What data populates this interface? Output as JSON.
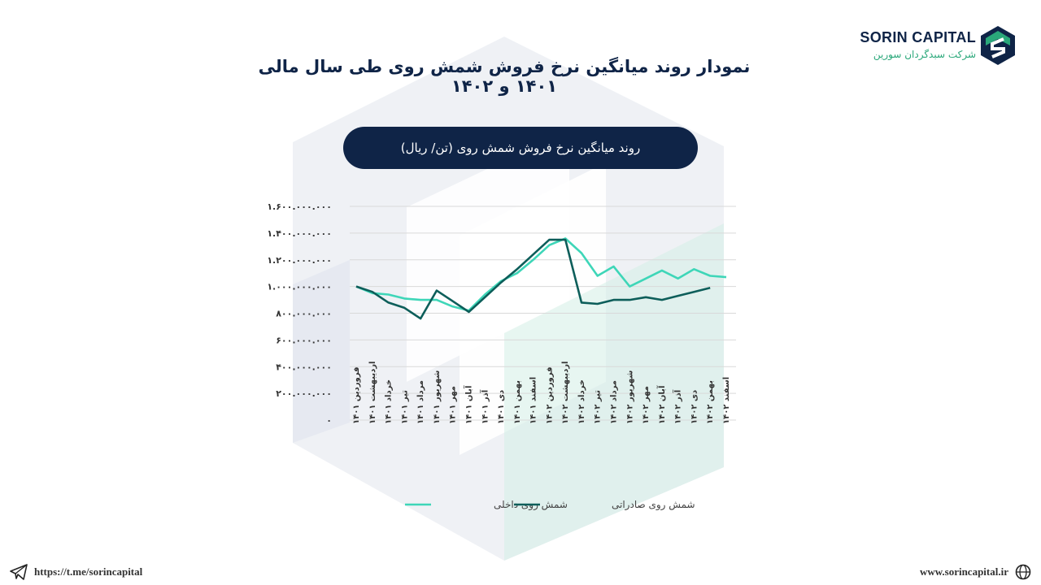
{
  "brand": {
    "name": "SORIN CAPITAL",
    "subtitle": "شرکت سبدگردان سورین",
    "color_primary": "#0f2447",
    "color_accent": "#2aa87a"
  },
  "page": {
    "title": "نمودار روند میانگین نرخ فروش شمش روی طی سال مالی ۱۴۰۱ و ۱۴۰۲"
  },
  "footer": {
    "telegram_icon": "telegram-icon",
    "telegram": "https://t.me/sorincapital",
    "web_icon": "globe-icon",
    "website": "www.sorincapital.ir"
  },
  "chart_data": {
    "type": "line",
    "title": "روند میانگین نرخ فروش شمش روی (تن/ ریال)",
    "ylim": [
      0,
      1600000000
    ],
    "yticks": [
      0,
      200000000,
      400000000,
      600000000,
      800000000,
      1000000000,
      1200000000,
      1400000000,
      1600000000
    ],
    "ytick_labels": [
      "۰",
      "۲۰۰.۰۰۰.۰۰۰",
      "۴۰۰.۰۰۰.۰۰۰",
      "۶۰۰.۰۰۰.۰۰۰",
      "۸۰۰.۰۰۰.۰۰۰",
      "۱.۰۰۰.۰۰۰.۰۰۰",
      "۱.۲۰۰.۰۰۰.۰۰۰",
      "۱.۴۰۰.۰۰۰.۰۰۰",
      "۱.۶۰۰.۰۰۰.۰۰۰"
    ],
    "categories": [
      "فروردین ۱۴۰۱",
      "اردیبهشت ۱۴۰۱",
      "خرداد ۱۴۰۱",
      "تیر ۱۴۰۱",
      "مرداد ۱۴۰۱",
      "شهریور ۱۴۰۱",
      "مهر ۱۴۰۱",
      "آبان ۱۴۰۱",
      "آذر ۱۴۰۱",
      "دی ۱۴۰۱",
      "بهمن ۱۴۰۱",
      "اسفند ۱۴۰۱",
      "فروردین ۱۴۰۲",
      "اردیبهشت ۱۴۰۲",
      "خرداد ۱۴۰۲",
      "تیر ۱۴۰۲",
      "مرداد ۱۴۰۲",
      "شهریور ۱۴۰۲",
      "مهر ۱۴۰۲",
      "آبان ۱۴۰۲",
      "آذر ۱۴۰۲",
      "دی ۱۴۰۲",
      "بهمن ۱۴۰۲",
      "اسفند ۱۴۰۲"
    ],
    "series": [
      {
        "name": "شمش روی داخلی",
        "color": "#3ed6b8",
        "values": [
          1000000000,
          950000000,
          940000000,
          910000000,
          900000000,
          900000000,
          850000000,
          820000000,
          940000000,
          1040000000,
          1100000000,
          1200000000,
          1310000000,
          1360000000,
          1250000000,
          1080000000,
          1150000000,
          1000000000,
          1060000000,
          1120000000,
          1060000000,
          1130000000,
          1080000000,
          1070000000
        ]
      },
      {
        "name": "شمش روی صادراتی",
        "color": "#0d5e5a",
        "values": [
          1000000000,
          960000000,
          880000000,
          840000000,
          760000000,
          970000000,
          890000000,
          810000000,
          920000000,
          1030000000,
          1130000000,
          1240000000,
          1350000000,
          1350000000,
          880000000,
          870000000,
          900000000,
          900000000,
          920000000,
          900000000,
          930000000,
          960000000,
          990000000,
          null
        ]
      }
    ],
    "grid": true,
    "legend": "bottom"
  }
}
